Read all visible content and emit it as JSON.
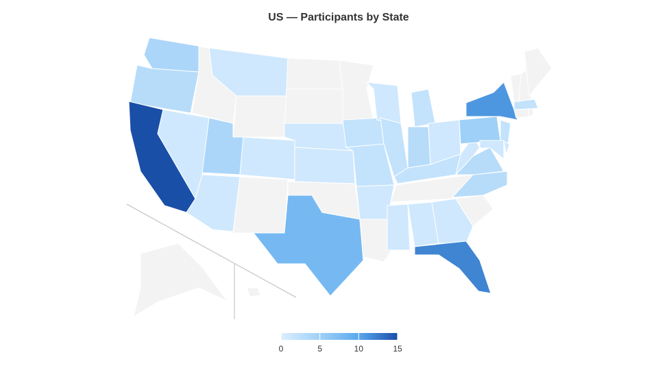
{
  "chart_data": {
    "type": "choropleth",
    "title": "US — Participants by State",
    "values": {
      "WA": 4,
      "OR": 3,
      "CA": 15,
      "NV": 1,
      "ID": null,
      "MT": 1,
      "WY": null,
      "UT": 4,
      "AZ": 1,
      "CO": 1,
      "NM": null,
      "ND": null,
      "SD": null,
      "NE": 1,
      "KS": 1,
      "OK": null,
      "TX": 8,
      "MN": null,
      "IA": 2,
      "MO": 2,
      "AR": 1,
      "LA": null,
      "WI": 1,
      "IL": 2,
      "MI": 2,
      "IN": 3,
      "OH": 1,
      "KY": 2,
      "TN": null,
      "MS": 1,
      "AL": 1,
      "GA": 1,
      "FL": 12,
      "SC": null,
      "NC": 3,
      "VA": 3,
      "WV": 1,
      "PA": 5,
      "NY": 11,
      "NJ": 2,
      "DE": 1,
      "MD": 1,
      "CT": null,
      "RI": null,
      "MA": 2,
      "VT": null,
      "NH": null,
      "ME": null,
      "AK": null,
      "HI": null
    },
    "colorscale": [
      "#dbeeff",
      "#9fd0f7",
      "#5aa9ee",
      "#1a4fa8"
    ],
    "missing_color": "#f3f3f3",
    "clim": [
      0,
      15
    ],
    "cticks": [
      0,
      5,
      10,
      15
    ]
  }
}
